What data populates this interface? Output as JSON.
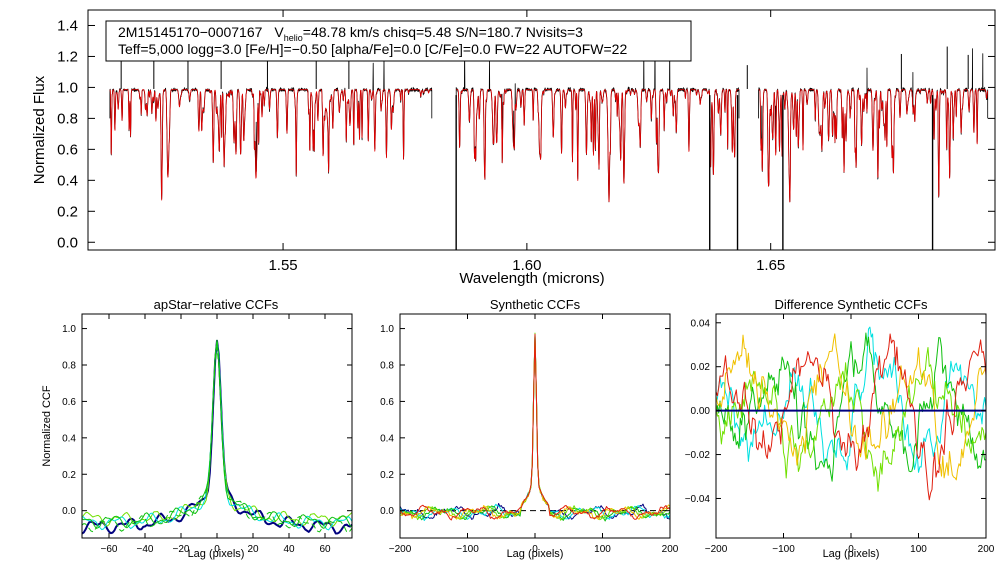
{
  "colors": {
    "observed": "#000000",
    "model": "#e00000",
    "navy": "#00007f",
    "cyan": "#00e0e0",
    "green": "#10c010",
    "lime": "#70e000",
    "orange": "#f0c000",
    "red": "#e02010",
    "dark_green": "#2a6a2a"
  },
  "chart_data": [
    {
      "id": "spectrum",
      "type": "line",
      "title": "",
      "xlabel": "Wavelength (microns)",
      "ylabel": "Normalized Flux",
      "xlim": [
        1.51,
        1.696
      ],
      "ylim": [
        -0.05,
        1.5
      ],
      "x_ticks": [
        1.55,
        1.6,
        1.65
      ],
      "x_tick_labels": [
        "1.55",
        "1.60",
        "1.65"
      ],
      "y_ticks": [
        0.0,
        0.2,
        0.4,
        0.6,
        0.8,
        1.0,
        1.2,
        1.4
      ],
      "y_tick_labels": [
        "0.0",
        "0.2",
        "0.4",
        "0.6",
        "0.8",
        "1.0",
        "1.2",
        "1.4"
      ],
      "annotation": {
        "star_id": "2M15145170−0007167",
        "v_label": "V",
        "v_subscript": "helio",
        "v_rest": "=48.78 km/s  chisq=5.48  S/N=180.7  Nvisits=3",
        "line2": "Teff=5,000 logg=3.0 [Fe/H]=−0.50 [alpha/Fe]=0.0 [C/Fe]=0.0 FW=22 AUTOFW=22"
      },
      "chips": [
        [
          1.5145,
          1.5805
        ],
        [
          1.5855,
          1.6435
        ],
        [
          1.6475,
          1.6945
        ]
      ],
      "series": [
        {
          "name": "observed",
          "color_key": "observed"
        },
        {
          "name": "model",
          "color_key": "model"
        }
      ]
    },
    {
      "id": "apstar_ccf",
      "type": "line",
      "title": "apStar−relative CCFs",
      "xlabel": "Lag (pixels)",
      "ylabel": "Normalized CCF",
      "xlim": [
        -75,
        75
      ],
      "ylim": [
        -0.15,
        1.08
      ],
      "x_ticks": [
        -60,
        -40,
        -20,
        0,
        20,
        40,
        60
      ],
      "x_tick_labels": [
        "−60",
        "−40",
        "−20",
        "0",
        "20",
        "40",
        "60"
      ],
      "y_ticks": [
        0.0,
        0.2,
        0.4,
        0.6,
        0.8,
        1.0
      ],
      "y_tick_labels": [
        "0.0",
        "0.2",
        "0.4",
        "0.6",
        "0.8",
        "1.0"
      ],
      "series": [
        {
          "name": "combined",
          "color_key": "navy",
          "width": 2
        },
        {
          "name": "visit 1",
          "color_key": "lime",
          "width": 1
        },
        {
          "name": "visit 2",
          "color_key": "cyan",
          "width": 1
        },
        {
          "name": "visit 3",
          "color_key": "green",
          "width": 1
        },
        {
          "name": "visit 3 dashed",
          "color_key": "green",
          "width": 1,
          "dashed": true
        }
      ]
    },
    {
      "id": "synthetic_ccf",
      "type": "line",
      "title": "Synthetic CCFs",
      "xlabel": "Lag (pixels)",
      "ylabel": "",
      "xlim": [
        -200,
        200
      ],
      "ylim": [
        -0.15,
        1.08
      ],
      "x_ticks": [
        -200,
        -100,
        0,
        100,
        200
      ],
      "x_tick_labels": [
        "−200",
        "−100",
        "0",
        "100",
        "200"
      ],
      "y_ticks": [
        0.0,
        0.2,
        0.4,
        0.6,
        0.8,
        1.0
      ],
      "y_tick_labels": [
        "0.0",
        "0.2",
        "0.4",
        "0.6",
        "0.8",
        "1.0"
      ],
      "reference_line": 0.0,
      "series": [
        {
          "name": "combined",
          "color_key": "navy"
        },
        {
          "name": "visit 1",
          "color_key": "cyan"
        },
        {
          "name": "visit 2",
          "color_key": "green"
        },
        {
          "name": "visit 3",
          "color_key": "lime"
        },
        {
          "name": "visit 4",
          "color_key": "orange"
        },
        {
          "name": "visit 5",
          "color_key": "red"
        }
      ]
    },
    {
      "id": "difference_ccf",
      "type": "line",
      "title": "Difference Synthetic CCFs",
      "xlabel": "Lag (pixels)",
      "ylabel": "",
      "xlim": [
        -200,
        200
      ],
      "ylim": [
        -0.058,
        0.044
      ],
      "x_ticks": [
        -200,
        -100,
        0,
        100,
        200
      ],
      "x_tick_labels": [
        "−200",
        "−100",
        "0",
        "100",
        "200"
      ],
      "y_ticks": [
        -0.04,
        -0.02,
        0.0,
        0.02,
        0.04
      ],
      "y_tick_labels": [
        "−0.04",
        "−0.02",
        "0.00",
        "0.02",
        "0.04"
      ],
      "series": [
        {
          "name": "combined",
          "color_key": "navy",
          "width": 2
        },
        {
          "name": "visit 1",
          "color_key": "cyan"
        },
        {
          "name": "visit 2",
          "color_key": "green"
        },
        {
          "name": "visit 3",
          "color_key": "lime"
        },
        {
          "name": "visit 4",
          "color_key": "orange"
        },
        {
          "name": "visit 5",
          "color_key": "red"
        }
      ]
    }
  ]
}
